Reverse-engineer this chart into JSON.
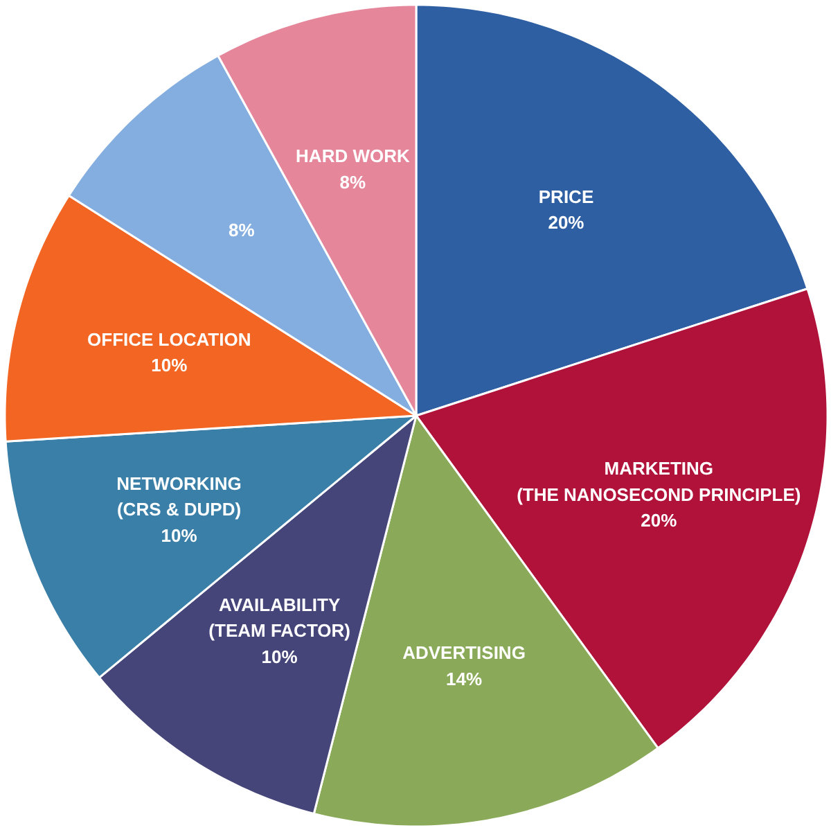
{
  "chart_data": {
    "type": "pie",
    "categories": [
      "PRICE",
      "MARKETING\n(THE NANOSECOND PRINCIPLE)",
      "ADVERTISING",
      "AVAILABILITY\n(TEAM FACTOR)",
      "NETWORKING\n(CRS & DUPD)",
      "OFFICE LOCATION",
      null,
      "HARD WORK"
    ],
    "values": [
      20,
      20,
      14,
      10,
      10,
      10,
      8,
      8
    ],
    "value_labels": [
      "20%",
      "20%",
      "14%",
      "10%",
      "10%",
      "10%",
      "8%",
      "8%"
    ],
    "colors": [
      "#2e5fa3",
      "#b0123a",
      "#8aaa5a",
      "#46457a",
      "#3a7fa8",
      "#f26522",
      "#84aee0",
      "#e5869a"
    ]
  }
}
